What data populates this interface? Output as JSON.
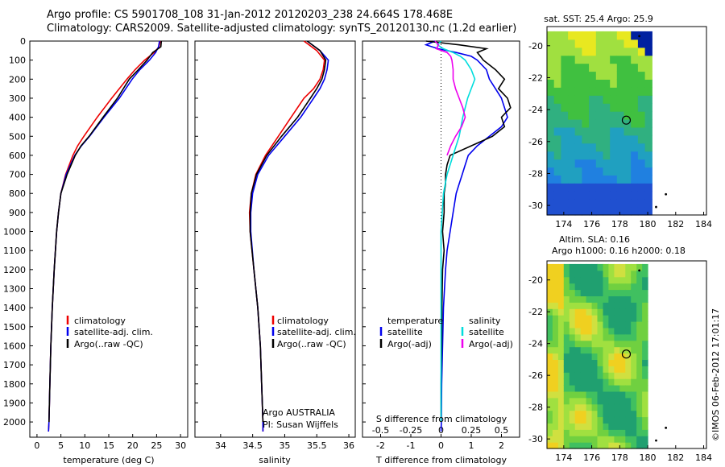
{
  "header": {
    "line1": "Argo profile: CS 5901708_108 31-Jan-2012 20120203_238 24.664S 178.468E",
    "line2": "Climatology: CARS2009. Satellite-adjusted climatology: synTS_20120130.nc (1.2d earlier)"
  },
  "footer": {
    "stamp": "©IMOS 06-Feb-2012 17:01:17"
  },
  "colors": {
    "climatology": "#ee0000",
    "satellite": "#0000ee",
    "argo": "#000000",
    "s_satellite": "#00dddd",
    "s_argo": "#ee00ee"
  },
  "chart_data": [
    {
      "type": "line",
      "xlabel": "temperature (deg C)",
      "ylabel": "",
      "xlim": [
        -1.5,
        31.5
      ],
      "ylim": [
        2080,
        0
      ],
      "x_ticks": [
        "0",
        "5",
        "10",
        "15",
        "20",
        "25",
        "30"
      ],
      "y_ticks": [
        "0",
        "100",
        "200",
        "300",
        "400",
        "500",
        "600",
        "700",
        "800",
        "900",
        "1000",
        "1100",
        "1200",
        "1300",
        "1400",
        "1500",
        "1600",
        "1700",
        "1800",
        "1900",
        "2000"
      ],
      "legend": [
        "climatology",
        "satellite-adj. clim.",
        "Argo(..raw -QC)"
      ],
      "series": [
        {
          "name": "climatology",
          "depth": [
            0,
            30,
            60,
            100,
            150,
            200,
            300,
            400,
            500,
            550,
            600,
            700,
            800,
            900,
            1000,
            1200,
            1400,
            1600,
            1800,
            2000,
            2050
          ],
          "values": [
            25.8,
            25.5,
            24.5,
            22.5,
            20.5,
            18.8,
            15.6,
            12.6,
            9.8,
            8.5,
            7.5,
            6.0,
            5.0,
            4.5,
            4.1,
            3.6,
            3.2,
            2.9,
            2.7,
            2.5,
            2.4
          ]
        },
        {
          "name": "satellite-adj. clim.",
          "depth": [
            0,
            30,
            60,
            100,
            150,
            200,
            300,
            400,
            500,
            550,
            600,
            700,
            800,
            900,
            1000,
            1200,
            1400,
            1600,
            1800,
            2000,
            2050
          ],
          "values": [
            25.6,
            25.4,
            24.8,
            23.5,
            21.5,
            19.9,
            17.2,
            14.0,
            11.0,
            9.3,
            7.9,
            6.1,
            5.0,
            4.5,
            4.1,
            3.6,
            3.2,
            2.9,
            2.7,
            2.5,
            2.4
          ]
        },
        {
          "name": "Argo(..raw -QC)",
          "depth": [
            0,
            30,
            60,
            100,
            150,
            200,
            300,
            400,
            500,
            550,
            600,
            700,
            800,
            900,
            1000,
            1200,
            1400,
            1600,
            1800,
            2000
          ],
          "values": [
            26.0,
            25.9,
            24.2,
            23.0,
            21.2,
            19.3,
            16.8,
            13.8,
            10.9,
            9.2,
            8.0,
            6.3,
            5.0,
            4.5,
            4.1,
            3.6,
            3.2,
            2.9,
            2.7,
            2.5
          ]
        }
      ]
    },
    {
      "type": "line",
      "xlabel": "salinity",
      "ylabel": "",
      "xlim": [
        33.6,
        36.1
      ],
      "ylim": [
        2080,
        0
      ],
      "x_ticks": [
        "34",
        "34.5",
        "35",
        "35.5",
        "36"
      ],
      "legend": [
        "climatology",
        "satellite-adj. clim.",
        "Argo(..raw -QC)"
      ],
      "annotation": [
        "Argo AUSTRALIA",
        "PI: Susan Wijffels"
      ],
      "series": [
        {
          "name": "climatology",
          "depth": [
            0,
            50,
            100,
            150,
            200,
            250,
            300,
            400,
            500,
            600,
            700,
            800,
            900,
            1000,
            1200,
            1400,
            1600,
            1800,
            2000,
            2050
          ],
          "values": [
            35.3,
            35.5,
            35.62,
            35.6,
            35.55,
            35.45,
            35.3,
            35.1,
            34.9,
            34.7,
            34.55,
            34.48,
            34.45,
            34.46,
            34.52,
            34.58,
            34.62,
            34.64,
            34.66,
            34.66
          ]
        },
        {
          "name": "satellite-adj. clim.",
          "depth": [
            0,
            50,
            100,
            150,
            200,
            250,
            300,
            400,
            500,
            600,
            700,
            800,
            900,
            1000,
            1200,
            1400,
            1600,
            1800,
            2000,
            2050
          ],
          "values": [
            35.35,
            35.55,
            35.68,
            35.66,
            35.62,
            35.55,
            35.45,
            35.25,
            35.0,
            34.75,
            34.58,
            34.5,
            34.47,
            34.47,
            34.52,
            34.58,
            34.62,
            34.64,
            34.66,
            34.66
          ]
        },
        {
          "name": "Argo(..raw -QC)",
          "depth": [
            0,
            50,
            100,
            150,
            200,
            250,
            300,
            400,
            500,
            600,
            700,
            800,
            900,
            1000,
            1200,
            1400,
            1600,
            1800,
            2000
          ],
          "values": [
            35.35,
            35.55,
            35.64,
            35.62,
            35.58,
            35.5,
            35.4,
            35.2,
            34.95,
            34.72,
            34.56,
            34.48,
            34.46,
            34.46,
            34.52,
            34.58,
            34.62,
            34.64,
            34.66
          ]
        }
      ]
    },
    {
      "type": "line",
      "xlabel": "T difference from climatology",
      "xlabel_top": "S difference from climatology",
      "xlim": [
        -2.6,
        2.6
      ],
      "ylim": [
        2080,
        0
      ],
      "x_ticks": [
        "-2",
        "-1",
        "0",
        "1",
        "2"
      ],
      "x_ticks_top": [
        "-0.5",
        "-0.25",
        "0",
        "0.25",
        "0.5"
      ],
      "legend_left_title": "temperature",
      "legend_left": [
        "satellite",
        "Argo(-adj)"
      ],
      "legend_right_title": "salinity",
      "legend_right": [
        "satellite",
        "Argo(-adj)"
      ],
      "series": [
        {
          "name": "temperature satellite",
          "depth": [
            0,
            20,
            40,
            60,
            80,
            100,
            150,
            200,
            250,
            300,
            350,
            400,
            450,
            500,
            550,
            600,
            650,
            700,
            750,
            800,
            900,
            1000,
            1100,
            1200,
            1400,
            1600,
            1800,
            2000,
            2050
          ],
          "values": [
            -0.2,
            -0.5,
            -0.1,
            0.5,
            1.0,
            1.2,
            1.5,
            1.6,
            1.8,
            2.0,
            2.1,
            2.2,
            2.0,
            1.6,
            1.2,
            0.9,
            0.8,
            0.7,
            0.6,
            0.5,
            0.4,
            0.3,
            0.2,
            0.15,
            0.08,
            0.05,
            0.02,
            0.01,
            0
          ]
        },
        {
          "name": "temperature Argo(-adj)",
          "depth": [
            0,
            20,
            40,
            60,
            80,
            100,
            150,
            200,
            250,
            300,
            350,
            400,
            450,
            500,
            550,
            600,
            650,
            700,
            750,
            800,
            900,
            1000,
            1100,
            1200,
            1400,
            1600,
            1800,
            2000
          ],
          "values": [
            -0.5,
            0.6,
            1.5,
            1.2,
            1.3,
            1.4,
            1.8,
            2.1,
            1.9,
            2.2,
            2.3,
            2.0,
            2.1,
            1.7,
            1.0,
            0.3,
            0.2,
            0.15,
            0.15,
            0.1,
            0.1,
            0.05,
            0.1,
            0.05,
            0.03,
            0.02,
            0.0,
            0.0
          ]
        },
        {
          "name": "salinity satellite",
          "depth": [
            0,
            20,
            40,
            60,
            80,
            100,
            150,
            200,
            250,
            300,
            350,
            400,
            500,
            600,
            700,
            800,
            900,
            1000,
            1100,
            1200,
            1400,
            1600,
            1800,
            2000
          ],
          "values": [
            0.0,
            -0.03,
            0.02,
            0.1,
            0.16,
            0.2,
            0.25,
            0.28,
            0.25,
            0.22,
            0.2,
            0.18,
            0.15,
            0.1,
            0.05,
            0.02,
            0.01,
            0.0,
            0.0,
            0.0,
            0.0,
            0.0,
            0.0,
            0.0
          ]
        },
        {
          "name": "salinity Argo(-adj)",
          "depth": [
            0,
            20,
            40,
            60,
            80,
            100,
            150,
            200,
            250,
            300,
            350,
            400,
            450,
            500,
            550,
            600
          ],
          "values": [
            -0.05,
            -0.02,
            -0.04,
            0.05,
            0.08,
            0.09,
            0.1,
            0.1,
            0.12,
            0.15,
            0.18,
            0.2,
            0.17,
            0.12,
            0.08,
            0.05
          ]
        }
      ]
    },
    {
      "type": "heatmap",
      "title": "sat. SST: 25.4  Argo: 25.9",
      "x_ticks": [
        "174",
        "176",
        "178",
        "180",
        "182",
        "184"
      ],
      "y_ticks": [
        "-20",
        "-22",
        "-24",
        "-26",
        "-28",
        "-30"
      ],
      "xlim": [
        172.8,
        184.2
      ],
      "ylim": [
        -30.6,
        -18.8
      ],
      "marker": {
        "lon": 178.47,
        "lat": -24.66
      }
    },
    {
      "type": "heatmap",
      "title_line1": "Altim. SLA: 0.16",
      "title_line2": "Argo h1000: 0.16 h2000: 0.18",
      "x_ticks": [
        "174",
        "176",
        "178",
        "180",
        "182",
        "184"
      ],
      "y_ticks": [
        "-20",
        "-22",
        "-24",
        "-26",
        "-28",
        "-30"
      ],
      "xlim": [
        172.8,
        184.2
      ],
      "ylim": [
        -30.6,
        -18.8
      ],
      "marker": {
        "lon": 178.47,
        "lat": -24.66
      }
    }
  ]
}
